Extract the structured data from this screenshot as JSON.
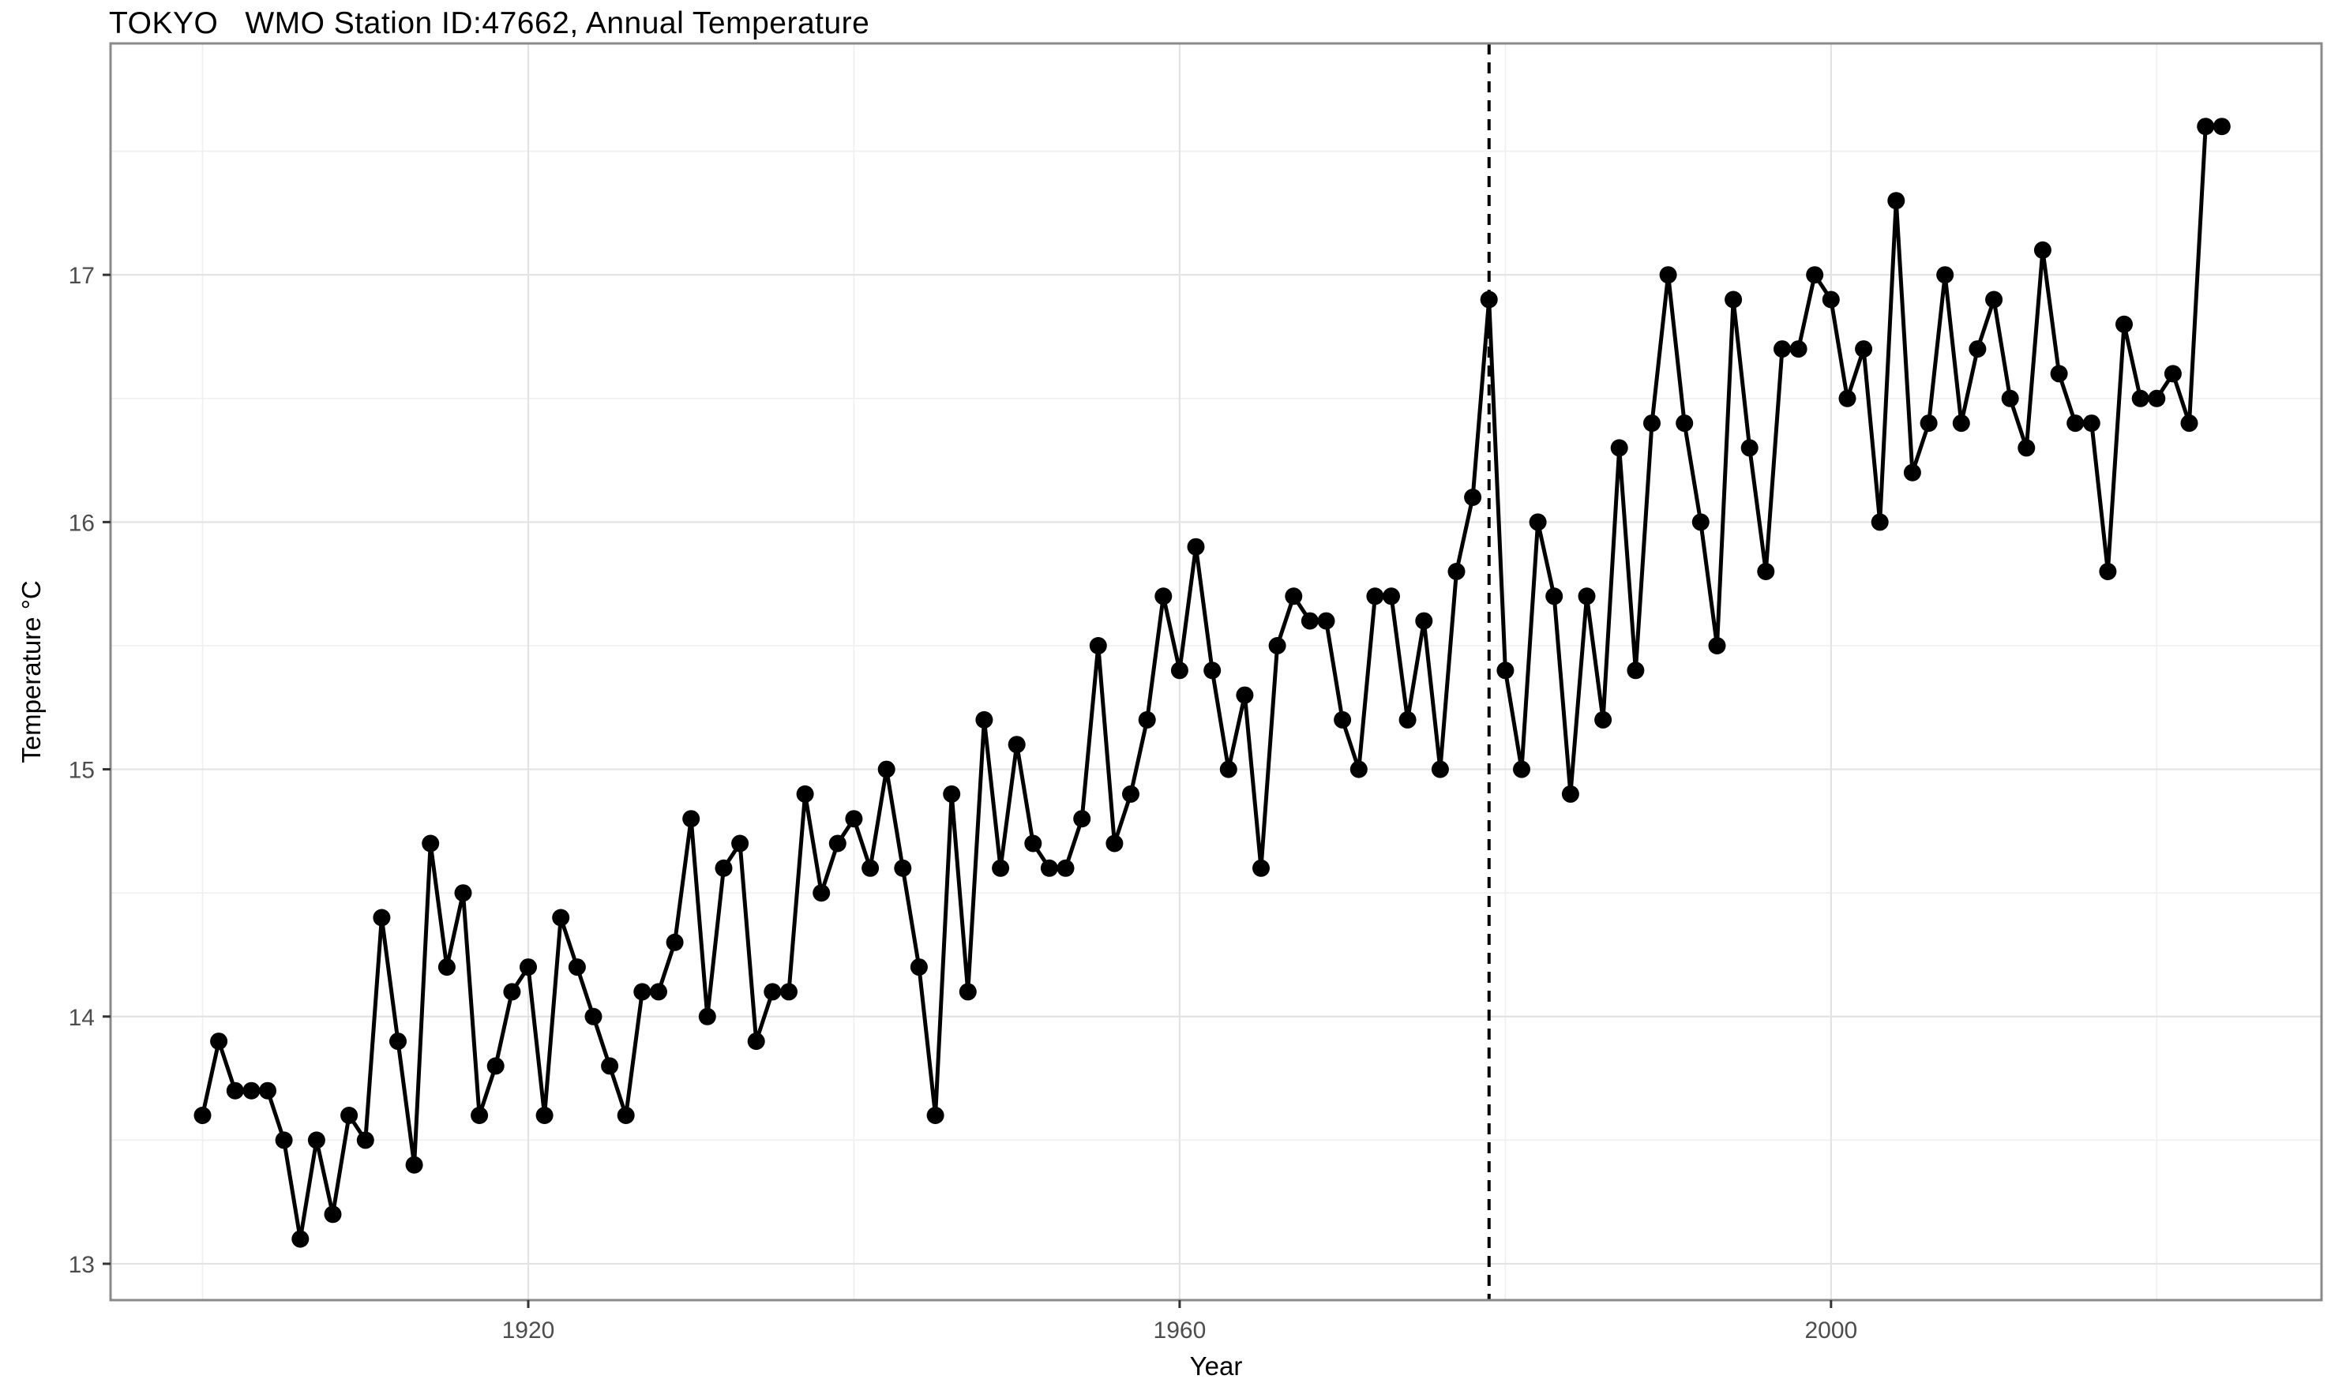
{
  "chart_data": {
    "type": "line",
    "title": "TOKYO   WMO Station ID:47662, Annual Temperature",
    "xlabel": "Year",
    "ylabel": "Temperature °C",
    "years": [
      1900,
      1901,
      1902,
      1903,
      1904,
      1905,
      1906,
      1907,
      1908,
      1909,
      1910,
      1911,
      1912,
      1913,
      1914,
      1915,
      1916,
      1917,
      1918,
      1919,
      1920,
      1921,
      1922,
      1923,
      1924,
      1925,
      1926,
      1927,
      1928,
      1929,
      1930,
      1931,
      1932,
      1933,
      1934,
      1935,
      1936,
      1937,
      1938,
      1939,
      1940,
      1941,
      1942,
      1943,
      1944,
      1945,
      1946,
      1947,
      1948,
      1949,
      1950,
      1951,
      1952,
      1953,
      1954,
      1955,
      1956,
      1957,
      1958,
      1959,
      1960,
      1961,
      1962,
      1963,
      1964,
      1965,
      1966,
      1967,
      1968,
      1969,
      1970,
      1971,
      1972,
      1973,
      1974,
      1975,
      1976,
      1977,
      1978,
      1979,
      1980,
      1981,
      1982,
      1983,
      1984,
      1985,
      1986,
      1987,
      1988,
      1989,
      1990,
      1991,
      1992,
      1993,
      1994,
      1995,
      1996,
      1997,
      1998,
      1999,
      2000,
      2001,
      2002,
      2003,
      2004,
      2005,
      2006,
      2007,
      2008,
      2009,
      2010,
      2011,
      2012,
      2013,
      2014,
      2015,
      2016,
      2017,
      2018,
      2019,
      2020,
      2021,
      2022,
      2023,
      2024
    ],
    "values": [
      13.6,
      13.9,
      13.7,
      13.7,
      13.7,
      13.5,
      13.1,
      13.5,
      13.2,
      13.6,
      13.5,
      14.4,
      13.9,
      13.4,
      14.7,
      14.2,
      14.5,
      13.6,
      13.8,
      14.1,
      14.2,
      13.6,
      14.4,
      14.2,
      14.0,
      13.8,
      13.6,
      14.1,
      14.1,
      14.3,
      14.8,
      14.0,
      14.6,
      14.7,
      13.9,
      14.1,
      14.1,
      14.9,
      14.5,
      14.7,
      14.8,
      14.6,
      15.0,
      14.6,
      14.2,
      13.6,
      14.9,
      14.1,
      15.2,
      14.6,
      15.1,
      14.7,
      14.6,
      14.6,
      14.8,
      15.5,
      14.7,
      14.9,
      15.2,
      15.7,
      15.4,
      15.9,
      15.4,
      15.0,
      15.3,
      14.6,
      15.5,
      15.7,
      15.6,
      15.6,
      15.2,
      15.0,
      15.7,
      15.7,
      15.2,
      15.6,
      15.0,
      15.8,
      16.1,
      16.9,
      15.4,
      15.0,
      16.0,
      15.7,
      14.9,
      15.7,
      15.2,
      16.3,
      15.4,
      16.4,
      17.0,
      16.4,
      16.0,
      15.5,
      16.9,
      16.3,
      15.8,
      16.7,
      16.7,
      17.0,
      16.9,
      16.5,
      16.7,
      16.0,
      17.3,
      16.2,
      16.4,
      17.0,
      16.4,
      16.7,
      16.9,
      16.5,
      16.3,
      17.1,
      16.6,
      16.4,
      16.4,
      15.8,
      16.8,
      16.5,
      16.5,
      16.6,
      16.4,
      17.6,
      17.6
    ],
    "x_ticks": [
      1920,
      1960,
      2000
    ],
    "y_ticks": [
      13,
      14,
      15,
      16,
      17
    ],
    "x_minor_gridlines": [
      1900,
      1940,
      1980,
      2020
    ],
    "y_minor_gridlines": [
      13.5,
      14.5,
      15.5,
      16.5,
      17.5
    ],
    "xlim": [
      1894.35,
      2030.12
    ],
    "ylim": [
      12.853,
      17.936
    ],
    "grid": "on",
    "legend": "none",
    "reference_line": {
      "x": 1979,
      "style": "dashed",
      "color": "#000000"
    },
    "colors": {
      "background": "#ffffff",
      "line": "#000000",
      "point": "#000000",
      "grid_major": "#e3e3e3",
      "grid_minor": "#efefef",
      "panel_border": "#8a8a8a",
      "tick": "#333333",
      "tick_label": "#4d4d4d",
      "title": "#000000"
    }
  }
}
